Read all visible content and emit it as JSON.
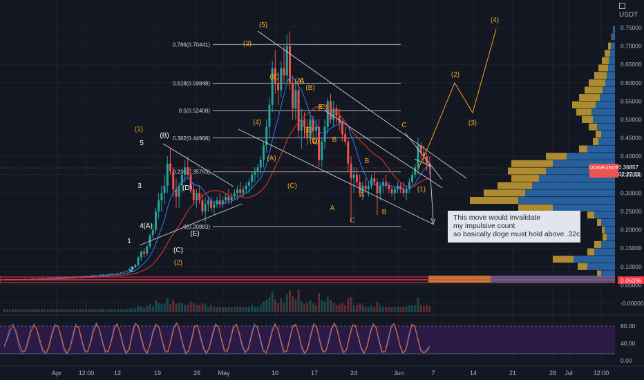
{
  "chart_data": {
    "type": "candlestick",
    "symbol": "DOGEUSDT",
    "currency": "USDT",
    "last_price": "0.36857",
    "countdown": "02:27:33",
    "support_level": "0.06396",
    "price_axis": {
      "range": [
        -0.02,
        0.77
      ],
      "ticks": [
        "0.75000",
        "0.70000",
        "0.65000",
        "0.60000",
        "0.55000",
        "0.50000",
        "0.45000",
        "0.40000",
        "0.35000",
        "0.30000",
        "0.25000",
        "0.20000",
        "0.15000",
        "0.10000",
        "0.05000",
        "-0.00000"
      ]
    },
    "time_axis": {
      "ticks": [
        "Apr",
        "12:00",
        "12",
        "19",
        "26",
        "May",
        "10",
        "17",
        "24",
        "Jun",
        "7",
        "14",
        "21",
        "28",
        "Jul",
        "12:00"
      ]
    },
    "fib_levels": [
      {
        "label": "0.786(0.70441)",
        "value": 0.70441
      },
      {
        "label": "0.618(0.59848)",
        "value": 0.59848
      },
      {
        "label": "0.5(0.52408)",
        "value": 0.52408
      },
      {
        "label": "0.382(0.44968)",
        "value": 0.44968
      },
      {
        "label": "0.236(0.35763)",
        "value": 0.35763
      },
      {
        "label": "0(0.20883)",
        "value": 0.20883
      }
    ],
    "wave_labels_white": [
      "1",
      "2",
      "3",
      "4",
      "5",
      "(A)",
      "(B)",
      "(C)",
      "(D)",
      "(E)"
    ],
    "wave_labels_orange": [
      "(1)",
      "(2)",
      "(3)",
      "(4)",
      "(5)",
      "(A)",
      "(B)",
      "(C)",
      "(A)",
      "(B)",
      "(C)",
      "(D)",
      "(E)",
      "A",
      "B",
      "C",
      "D",
      "E",
      "A",
      "B",
      "C",
      "A",
      "B",
      "C",
      "(1)",
      "(2)",
      "(3)",
      "(4)",
      "(5)"
    ],
    "stoch_axis": {
      "ticks": [
        "80.00",
        "40.00",
        "0.00"
      ],
      "range": [
        0,
        100
      ]
    },
    "candles": [
      [
        0.064,
        0.066,
        0.062,
        0.065
      ],
      [
        0.065,
        0.067,
        0.063,
        0.064
      ],
      [
        0.064,
        0.066,
        0.062,
        0.065
      ],
      [
        0.065,
        0.067,
        0.063,
        0.064
      ],
      [
        0.064,
        0.066,
        0.062,
        0.065
      ],
      [
        0.065,
        0.066,
        0.063,
        0.064
      ],
      [
        0.064,
        0.067,
        0.063,
        0.066
      ],
      [
        0.066,
        0.068,
        0.064,
        0.065
      ],
      [
        0.065,
        0.067,
        0.063,
        0.066
      ],
      [
        0.066,
        0.068,
        0.064,
        0.067
      ],
      [
        0.067,
        0.069,
        0.065,
        0.066
      ],
      [
        0.066,
        0.068,
        0.064,
        0.067
      ],
      [
        0.067,
        0.069,
        0.066,
        0.068
      ],
      [
        0.068,
        0.07,
        0.066,
        0.067
      ],
      [
        0.067,
        0.069,
        0.065,
        0.068
      ],
      [
        0.068,
        0.07,
        0.066,
        0.069
      ],
      [
        0.069,
        0.071,
        0.067,
        0.068
      ],
      [
        0.068,
        0.07,
        0.066,
        0.069
      ],
      [
        0.069,
        0.072,
        0.068,
        0.071
      ],
      [
        0.071,
        0.073,
        0.069,
        0.07
      ],
      [
        0.07,
        0.072,
        0.068,
        0.071
      ],
      [
        0.071,
        0.073,
        0.069,
        0.072
      ],
      [
        0.072,
        0.074,
        0.07,
        0.071
      ],
      [
        0.071,
        0.073,
        0.069,
        0.072
      ],
      [
        0.072,
        0.075,
        0.07,
        0.073
      ],
      [
        0.073,
        0.075,
        0.071,
        0.072
      ],
      [
        0.072,
        0.074,
        0.07,
        0.073
      ],
      [
        0.073,
        0.075,
        0.071,
        0.074
      ],
      [
        0.074,
        0.076,
        0.072,
        0.073
      ],
      [
        0.073,
        0.075,
        0.071,
        0.074
      ],
      [
        0.074,
        0.077,
        0.072,
        0.076
      ],
      [
        0.076,
        0.078,
        0.074,
        0.075
      ],
      [
        0.075,
        0.077,
        0.073,
        0.076
      ],
      [
        0.076,
        0.079,
        0.074,
        0.078
      ],
      [
        0.078,
        0.08,
        0.076,
        0.077
      ],
      [
        0.077,
        0.079,
        0.075,
        0.078
      ],
      [
        0.078,
        0.081,
        0.076,
        0.08
      ],
      [
        0.08,
        0.082,
        0.078,
        0.079
      ],
      [
        0.079,
        0.081,
        0.077,
        0.08
      ],
      [
        0.08,
        0.083,
        0.078,
        0.082
      ],
      [
        0.082,
        0.085,
        0.08,
        0.084
      ],
      [
        0.084,
        0.087,
        0.082,
        0.086
      ],
      [
        0.086,
        0.09,
        0.084,
        0.088
      ],
      [
        0.088,
        0.095,
        0.086,
        0.093
      ],
      [
        0.093,
        0.1,
        0.09,
        0.098
      ],
      [
        0.098,
        0.108,
        0.095,
        0.105
      ],
      [
        0.105,
        0.13,
        0.1,
        0.125
      ],
      [
        0.125,
        0.145,
        0.115,
        0.14
      ],
      [
        0.14,
        0.15,
        0.125,
        0.135
      ],
      [
        0.135,
        0.16,
        0.13,
        0.155
      ],
      [
        0.155,
        0.19,
        0.15,
        0.185
      ],
      [
        0.185,
        0.215,
        0.175,
        0.2
      ],
      [
        0.2,
        0.26,
        0.19,
        0.25
      ],
      [
        0.25,
        0.3,
        0.23,
        0.28
      ],
      [
        0.28,
        0.32,
        0.25,
        0.3
      ],
      [
        0.3,
        0.35,
        0.27,
        0.32
      ],
      [
        0.32,
        0.4,
        0.3,
        0.38
      ],
      [
        0.38,
        0.42,
        0.35,
        0.36
      ],
      [
        0.36,
        0.37,
        0.29,
        0.31
      ],
      [
        0.31,
        0.34,
        0.26,
        0.29
      ],
      [
        0.29,
        0.33,
        0.26,
        0.32
      ],
      [
        0.32,
        0.36,
        0.3,
        0.35
      ],
      [
        0.35,
        0.39,
        0.33,
        0.37
      ],
      [
        0.37,
        0.4,
        0.34,
        0.35
      ],
      [
        0.35,
        0.37,
        0.3,
        0.31
      ],
      [
        0.31,
        0.33,
        0.27,
        0.28
      ],
      [
        0.28,
        0.31,
        0.26,
        0.3
      ],
      [
        0.3,
        0.32,
        0.27,
        0.28
      ],
      [
        0.28,
        0.3,
        0.24,
        0.25
      ],
      [
        0.25,
        0.29,
        0.22,
        0.27
      ],
      [
        0.27,
        0.29,
        0.25,
        0.28
      ],
      [
        0.28,
        0.29,
        0.25,
        0.26
      ],
      [
        0.26,
        0.28,
        0.24,
        0.27
      ],
      [
        0.27,
        0.29,
        0.26,
        0.28
      ],
      [
        0.28,
        0.3,
        0.26,
        0.27
      ],
      [
        0.27,
        0.29,
        0.26,
        0.28
      ],
      [
        0.28,
        0.3,
        0.27,
        0.29
      ],
      [
        0.29,
        0.31,
        0.27,
        0.28
      ],
      [
        0.28,
        0.3,
        0.27,
        0.29
      ],
      [
        0.29,
        0.31,
        0.28,
        0.3
      ],
      [
        0.3,
        0.32,
        0.28,
        0.31
      ],
      [
        0.31,
        0.33,
        0.29,
        0.3
      ],
      [
        0.3,
        0.32,
        0.29,
        0.31
      ],
      [
        0.31,
        0.33,
        0.3,
        0.32
      ],
      [
        0.32,
        0.34,
        0.3,
        0.33
      ],
      [
        0.33,
        0.36,
        0.31,
        0.35
      ],
      [
        0.35,
        0.37,
        0.33,
        0.36
      ],
      [
        0.36,
        0.38,
        0.34,
        0.37
      ],
      [
        0.37,
        0.4,
        0.35,
        0.39
      ],
      [
        0.39,
        0.44,
        0.37,
        0.43
      ],
      [
        0.43,
        0.5,
        0.41,
        0.48
      ],
      [
        0.48,
        0.56,
        0.45,
        0.54
      ],
      [
        0.54,
        0.66,
        0.52,
        0.64
      ],
      [
        0.64,
        0.69,
        0.57,
        0.6
      ],
      [
        0.6,
        0.63,
        0.54,
        0.58
      ],
      [
        0.58,
        0.66,
        0.56,
        0.64
      ],
      [
        0.64,
        0.7,
        0.6,
        0.62
      ],
      [
        0.62,
        0.73,
        0.6,
        0.7
      ],
      [
        0.7,
        0.74,
        0.58,
        0.6
      ],
      [
        0.6,
        0.62,
        0.5,
        0.53
      ],
      [
        0.53,
        0.6,
        0.5,
        0.58
      ],
      [
        0.58,
        0.6,
        0.45,
        0.47
      ],
      [
        0.47,
        0.53,
        0.42,
        0.5
      ],
      [
        0.5,
        0.52,
        0.45,
        0.48
      ],
      [
        0.48,
        0.5,
        0.43,
        0.45
      ],
      [
        0.45,
        0.52,
        0.44,
        0.5
      ],
      [
        0.5,
        0.51,
        0.45,
        0.47
      ],
      [
        0.47,
        0.5,
        0.43,
        0.48
      ],
      [
        0.48,
        0.5,
        0.37,
        0.39
      ],
      [
        0.39,
        0.45,
        0.37,
        0.44
      ],
      [
        0.44,
        0.5,
        0.42,
        0.48
      ],
      [
        0.48,
        0.56,
        0.46,
        0.55
      ],
      [
        0.55,
        0.57,
        0.49,
        0.5
      ],
      [
        0.5,
        0.55,
        0.48,
        0.53
      ],
      [
        0.53,
        0.54,
        0.49,
        0.51
      ],
      [
        0.51,
        0.53,
        0.47,
        0.49
      ],
      [
        0.49,
        0.5,
        0.44,
        0.46
      ],
      [
        0.46,
        0.48,
        0.43,
        0.44
      ],
      [
        0.44,
        0.45,
        0.36,
        0.38
      ],
      [
        0.38,
        0.4,
        0.22,
        0.34
      ],
      [
        0.34,
        0.37,
        0.3,
        0.35
      ],
      [
        0.35,
        0.37,
        0.32,
        0.33
      ],
      [
        0.33,
        0.35,
        0.29,
        0.3
      ],
      [
        0.3,
        0.33,
        0.28,
        0.32
      ],
      [
        0.32,
        0.34,
        0.3,
        0.31
      ],
      [
        0.31,
        0.33,
        0.29,
        0.32
      ],
      [
        0.32,
        0.35,
        0.31,
        0.34
      ],
      [
        0.34,
        0.36,
        0.32,
        0.33
      ],
      [
        0.33,
        0.34,
        0.24,
        0.3
      ],
      [
        0.3,
        0.33,
        0.28,
        0.32
      ],
      [
        0.32,
        0.34,
        0.3,
        0.33
      ],
      [
        0.33,
        0.35,
        0.31,
        0.32
      ],
      [
        0.32,
        0.33,
        0.3,
        0.31
      ],
      [
        0.31,
        0.32,
        0.29,
        0.3
      ],
      [
        0.3,
        0.32,
        0.28,
        0.31
      ],
      [
        0.31,
        0.33,
        0.3,
        0.32
      ],
      [
        0.32,
        0.33,
        0.3,
        0.31
      ],
      [
        0.31,
        0.33,
        0.29,
        0.3
      ],
      [
        0.3,
        0.32,
        0.28,
        0.31
      ],
      [
        0.31,
        0.34,
        0.3,
        0.33
      ],
      [
        0.33,
        0.36,
        0.32,
        0.35
      ],
      [
        0.35,
        0.38,
        0.34,
        0.37
      ],
      [
        0.37,
        0.45,
        0.35,
        0.43
      ],
      [
        0.43,
        0.44,
        0.39,
        0.41
      ],
      [
        0.41,
        0.43,
        0.38,
        0.4
      ],
      [
        0.4,
        0.41,
        0.36,
        0.38
      ],
      [
        0.38,
        0.4,
        0.35,
        0.37
      ]
    ],
    "stoch_k": [
      30,
      55,
      80,
      85,
      60,
      30,
      15,
      25,
      50,
      75,
      85,
      70,
      40,
      20,
      15,
      35,
      65,
      85,
      80,
      55,
      25,
      15,
      30,
      60,
      85,
      75,
      45,
      20,
      20,
      45,
      75,
      88,
      70,
      40,
      18,
      22,
      50,
      80,
      86,
      60,
      30,
      15,
      30,
      65,
      88,
      80,
      50,
      25,
      15,
      40,
      70,
      85,
      75,
      45,
      20,
      20,
      50,
      80,
      88,
      65,
      35,
      15,
      25,
      55,
      82,
      80,
      50,
      25,
      15,
      35,
      65,
      86,
      78,
      45,
      20,
      22,
      52,
      80,
      85,
      60,
      30,
      18,
      30,
      60,
      85,
      78,
      48,
      22,
      18,
      42,
      72,
      86,
      70,
      40,
      18,
      25,
      55,
      82,
      84,
      58,
      28,
      15,
      30,
      62,
      86,
      76,
      44,
      20,
      20,
      48,
      78,
      88,
      66,
      36,
      16,
      26,
      58,
      84,
      80,
      52,
      26,
      16,
      36,
      68,
      86,
      74,
      42,
      18,
      22,
      50,
      80,
      86,
      62,
      32,
      16,
      28,
      60,
      85,
      78,
      48,
      22,
      18,
      25,
      35
    ],
    "stoch_d": [
      35,
      50,
      70,
      80,
      68,
      40,
      22,
      22,
      42,
      68,
      82,
      72,
      48,
      25,
      18,
      30,
      58,
      80,
      80,
      60,
      32,
      18,
      26,
      52,
      80,
      78,
      50,
      25,
      20,
      40,
      68,
      84,
      74,
      45,
      22,
      22,
      45,
      74,
      84,
      64,
      36,
      18,
      26,
      58,
      84,
      82,
      56,
      30,
      18,
      35,
      64,
      82,
      78,
      50,
      25,
      20,
      45,
      74,
      86,
      70,
      40,
      18,
      22,
      48,
      78,
      82,
      56,
      30,
      18,
      30,
      58,
      82,
      80,
      50,
      25,
      22,
      46,
      75,
      84,
      65,
      36,
      20,
      26,
      54,
      80,
      80,
      54,
      26,
      18,
      36,
      66,
      84,
      74,
      46,
      22,
      22,
      50,
      78,
      84,
      62,
      32,
      18,
      26,
      56,
      82,
      80,
      50,
      24,
      20,
      42,
      72,
      86,
      70,
      40,
      20,
      24,
      52,
      80,
      82,
      56,
      30,
      18,
      32,
      62,
      84,
      78,
      46,
      22,
      20,
      44,
      74,
      86,
      66,
      36,
      18,
      24,
      54,
      82,
      80,
      52,
      26,
      18,
      22,
      32
    ]
  },
  "annotation": {
    "lines": [
      "This move would invalidate",
      "my impulsive count",
      "so basically doge must hold above .32c"
    ]
  }
}
